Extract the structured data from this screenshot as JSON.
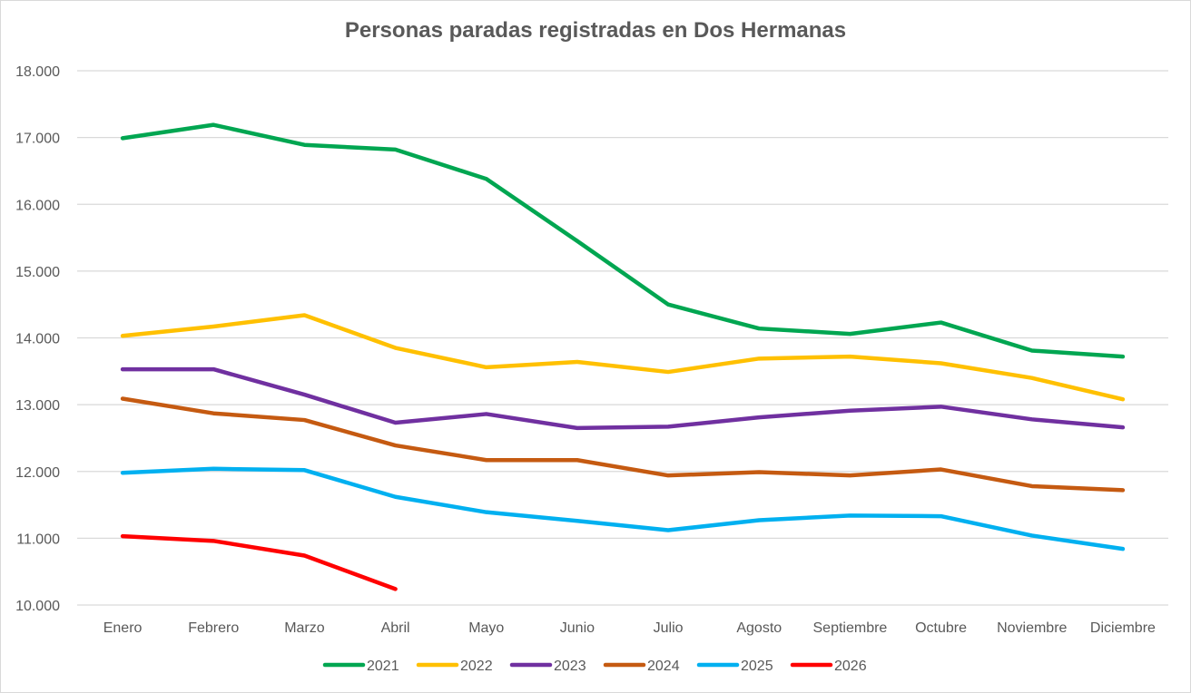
{
  "chart_data": {
    "type": "line",
    "title": "Personas paradas registradas en Dos Hermanas",
    "xlabel": "",
    "ylabel": "",
    "categories": [
      "Enero",
      "Febrero",
      "Marzo",
      "Abril",
      "Mayo",
      "Junio",
      "Julio",
      "Agosto",
      "Septiembre",
      "Octubre",
      "Noviembre",
      "Diciembre"
    ],
    "ylim": [
      10000,
      18000
    ],
    "yticks": [
      10000,
      11000,
      12000,
      13000,
      14000,
      15000,
      16000,
      17000,
      18000
    ],
    "ytick_labels": [
      "10.000",
      "11.000",
      "12.000",
      "13.000",
      "14.000",
      "15.000",
      "16.000",
      "17.000",
      "18.000"
    ],
    "grid": true,
    "legend_position": "bottom",
    "series": [
      {
        "name": "2021",
        "color": "#00a651",
        "values": [
          16990,
          17190,
          16890,
          16820,
          16380,
          15450,
          14500,
          14140,
          14060,
          14230,
          13810,
          13720
        ]
      },
      {
        "name": "2022",
        "color": "#ffc000",
        "values": [
          14030,
          14170,
          14340,
          13850,
          13560,
          13640,
          13490,
          13690,
          13720,
          13620,
          13400,
          13080
        ]
      },
      {
        "name": "2023",
        "color": "#7030a0",
        "values": [
          13530,
          13530,
          13150,
          12730,
          12860,
          12650,
          12670,
          12810,
          12910,
          12970,
          12780,
          12660
        ]
      },
      {
        "name": "2024",
        "color": "#c55a11",
        "values": [
          13090,
          12870,
          12770,
          12390,
          12170,
          12170,
          11940,
          11990,
          11940,
          12030,
          11780,
          11720
        ]
      },
      {
        "name": "2025",
        "color": "#00b0f0",
        "values": [
          11980,
          12040,
          12020,
          11620,
          11390,
          11260,
          11120,
          11270,
          11340,
          11330,
          11040,
          10840
        ]
      },
      {
        "name": "2026",
        "color": "#ff0000",
        "values": [
          11030,
          10960,
          10740,
          10240,
          null,
          null,
          null,
          null,
          null,
          null,
          null,
          null
        ]
      }
    ]
  }
}
